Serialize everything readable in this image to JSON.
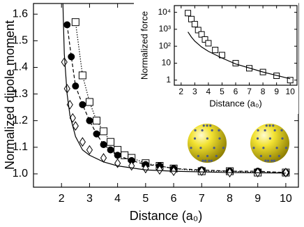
{
  "chart_data": [
    {
      "type": "line",
      "x_label": "Distance (a₀)",
      "y_label": "Normalized dipole moment",
      "xlim": [
        1.0,
        10.45
      ],
      "ylim": [
        0.95,
        1.64
      ],
      "xticks": [
        2,
        3,
        4,
        5,
        6,
        7,
        8,
        9,
        10
      ],
      "yticks": [
        {
          "value": 1,
          "label": "1.0"
        },
        1.1,
        1.2,
        1.3,
        1.4,
        1.5,
        1.6
      ],
      "log_y": false,
      "series": [
        {
          "color": "#000000",
          "marker": "square",
          "dash": "dotted",
          "x": [
            2.5,
            2.75,
            3,
            3.25,
            3.5,
            3.75,
            4,
            4.25,
            4.5,
            5,
            5.5,
            6,
            7,
            8,
            9,
            10
          ],
          "values": [
            1.57,
            1.37,
            1.27,
            1.2,
            1.16,
            1.12,
            1.09,
            1.07,
            1.06,
            1.04,
            1.03,
            1.02,
            1.01,
            1.01,
            1.005,
            1.005
          ]
        },
        {
          "color": "#000000",
          "marker": "circle",
          "dash": "dashed",
          "x": [
            2.2,
            2.35,
            2.5,
            2.75,
            3,
            3.25,
            3.5,
            3.75,
            4,
            4.5,
            5,
            5.5,
            6,
            7,
            8,
            9,
            10
          ],
          "values": [
            1.56,
            1.44,
            1.33,
            1.26,
            1.2,
            1.15,
            1.11,
            1.09,
            1.07,
            1.05,
            1.035,
            1.03,
            1.02,
            1.015,
            1.01,
            1.01,
            1.005
          ]
        },
        {
          "color": "#000000",
          "marker": "diamond",
          "dash": "none",
          "x": [
            2.1,
            2.2,
            2.3,
            2.4,
            2.5,
            2.75,
            3,
            3.5,
            4,
            4.5,
            5,
            5.5,
            6,
            7,
            8,
            9,
            10
          ],
          "values": [
            1.42,
            1.32,
            1.26,
            1.21,
            1.18,
            1.12,
            1.09,
            1.06,
            1.04,
            1.03,
            1.02,
            1.015,
            1.01,
            1.01,
            1.005,
            1.005,
            1.005
          ]
        },
        {
          "color": "#000000",
          "marker": "none",
          "dash": "solid",
          "x": [
            2.05,
            2.1,
            2.2,
            2.3,
            2.5,
            2.75,
            3,
            3.5,
            4,
            5,
            6,
            8,
            10
          ],
          "values": [
            1.64,
            1.45,
            1.3,
            1.22,
            1.14,
            1.09,
            1.07,
            1.045,
            1.03,
            1.015,
            1.01,
            1.005,
            1.003
          ]
        }
      ]
    },
    {
      "type": "line",
      "x_label": "Distance (a₀)",
      "y_label": "Normalized force",
      "xlim": [
        1.5,
        10.5
      ],
      "ylim": [
        0.5,
        25000
      ],
      "xticks": [
        2,
        3,
        4,
        5,
        6,
        7,
        8,
        9,
        10
      ],
      "yticks": [
        1,
        10,
        {
          "value": 100,
          "label": "10²"
        },
        {
          "value": 1000,
          "label": "10³"
        },
        {
          "value": 10000,
          "label": "10⁴"
        }
      ],
      "log_y": true,
      "series": [
        {
          "color": "#000000",
          "marker": "square",
          "dash": "none",
          "x": [
            2.5,
            2.75,
            3,
            3.25,
            3.5,
            3.75,
            4,
            4.5,
            5,
            6,
            7,
            8,
            9,
            10
          ],
          "values": [
            9000,
            4000,
            2000,
            900,
            500,
            250,
            150,
            60,
            30,
            10,
            5,
            3,
            1.8,
            1
          ]
        },
        {
          "color": "#000000",
          "marker": "none",
          "dash": "solid",
          "x": [
            2.5,
            2.75,
            3,
            3.5,
            4,
            5,
            6,
            8,
            10
          ],
          "values": [
            700,
            350,
            200,
            90,
            50,
            20,
            9,
            3,
            1.2
          ]
        }
      ]
    }
  ]
}
